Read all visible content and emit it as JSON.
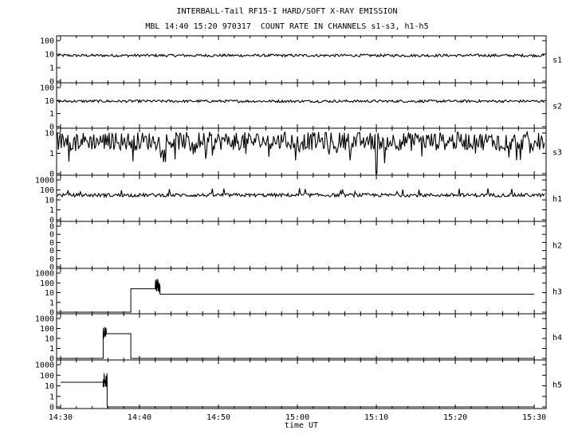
{
  "header": {
    "title": "INTERBALL-Tail RF15-I HARD/SOFT X-RAY EMISSION",
    "subtitle": "MBL 14:40 15:20 970317  COUNT RATE IN CHANNELS s1-s3, h1-h5"
  },
  "chart_data": {
    "type": "line",
    "title": "INTERBALL-Tail RF15-I HARD/SOFT X-RAY EMISSION",
    "subtitle": "MBL 14:40 15:20 970317  COUNT RATE IN CHANNELS s1-s3, h1-h5",
    "xlabel": "time UT",
    "x_ticks": [
      "14:30",
      "14:40",
      "14:50",
      "15:00",
      "15:10",
      "15:20",
      "15:30"
    ],
    "x_tick_minutes": [
      0,
      10,
      20,
      30,
      40,
      50,
      60
    ],
    "xlim_minutes_from_1430": [
      -0.5,
      61.5
    ],
    "grid": false,
    "panels": [
      {
        "name": "s1",
        "yscale": "log",
        "ytick_labels": [
          "100",
          "10",
          "1",
          "0"
        ],
        "typical_level": 8,
        "noise": "low"
      },
      {
        "name": "s2",
        "yscale": "log",
        "ytick_labels": [
          "100",
          "10",
          "1",
          "0"
        ],
        "typical_level": 9,
        "noise": "low"
      },
      {
        "name": "s3",
        "yscale": "log",
        "ytick_labels": [
          "10",
          "1",
          "0"
        ],
        "typical_level": 4,
        "noise": "high",
        "notable_dip": {
          "time": "15:10",
          "value": 0
        }
      },
      {
        "name": "h1",
        "yscale": "log",
        "ytick_labels": [
          "1000",
          "100",
          "10",
          "1",
          "0"
        ],
        "typical_level": 30,
        "noise": "medium"
      },
      {
        "name": "h2",
        "yscale": "log",
        "ytick_labels": [
          "0",
          "0",
          "0",
          "0",
          "0",
          "0"
        ],
        "typical_level": 0,
        "noise": "none"
      },
      {
        "name": "h3",
        "yscale": "log",
        "ytick_labels": [
          "1000",
          "100",
          "10",
          "1",
          "0"
        ],
        "steps": [
          {
            "from": "14:30",
            "to": "14:38.9",
            "value": 0
          },
          {
            "from": "14:38.9",
            "to": "14:42",
            "value": 25
          },
          {
            "from": "14:42",
            "to": "14:42.6",
            "value": 50,
            "noisy": true
          },
          {
            "from": "14:42.6",
            "to": "15:30",
            "value": 7
          }
        ]
      },
      {
        "name": "h4",
        "yscale": "log",
        "ytick_labels": [
          "1000",
          "100",
          "10",
          "1",
          "0"
        ],
        "steps": [
          {
            "from": "14:30",
            "to": "14:35.4",
            "value": 0
          },
          {
            "from": "14:35.4",
            "to": "14:35.8",
            "value": 40,
            "noisy": true
          },
          {
            "from": "14:35.8",
            "to": "14:38.9",
            "value": 30
          },
          {
            "from": "14:38.9",
            "to": "15:30",
            "value": 0
          }
        ]
      },
      {
        "name": "h5",
        "yscale": "log",
        "ytick_labels": [
          "1000",
          "100",
          "10",
          "1",
          "0"
        ],
        "steps": [
          {
            "from": "14:30",
            "to": "14:35.4",
            "value": 22
          },
          {
            "from": "14:35.4",
            "to": "14:35.9",
            "value": 30,
            "noisy": true
          },
          {
            "from": "14:35.9",
            "to": "15:30",
            "value": 0
          }
        ]
      }
    ]
  }
}
